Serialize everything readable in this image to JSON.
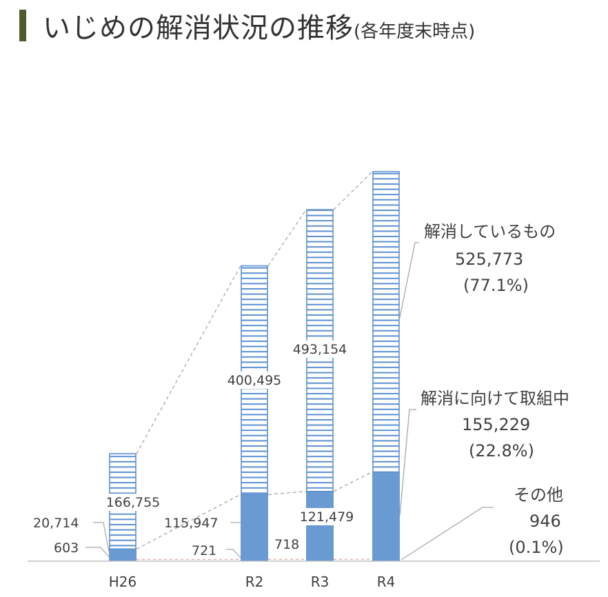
{
  "title": "いじめの解消状況の推移",
  "subtitle": "(各年度末時点)",
  "chart_data": {
    "type": "bar",
    "stacked": true,
    "categories": [
      "H26",
      "R2",
      "R3",
      "R4"
    ],
    "series": [
      {
        "name": "その他",
        "values": [
          603,
          721,
          718,
          946
        ],
        "color": "#5b8fd1"
      },
      {
        "name": "解消に向けて取組中",
        "values": [
          20714,
          115947,
          121479,
          155229
        ],
        "color": "#6a9ad2"
      },
      {
        "name": "解消しているもの",
        "values": [
          166755,
          400495,
          493154,
          525773
        ],
        "color": "#ffffff",
        "stroke": "#5b8fd1"
      }
    ],
    "data_labels": [
      [
        "603",
        "721",
        "718",
        ""
      ],
      [
        "20,714",
        "115,947",
        "121,479",
        ""
      ],
      [
        "166,755",
        "400,495",
        "493,154",
        ""
      ]
    ],
    "legend_callouts": [
      {
        "name": "解消しているもの",
        "value": "525,773",
        "pct": "(77.1%)"
      },
      {
        "name": "解消に向けて取組中",
        "value": "155,229",
        "pct": "(22.8%)"
      },
      {
        "name": "その他",
        "value": "946",
        "pct": "(0.1%)"
      }
    ],
    "xlabel": "",
    "ylabel": "",
    "grid": false
  }
}
